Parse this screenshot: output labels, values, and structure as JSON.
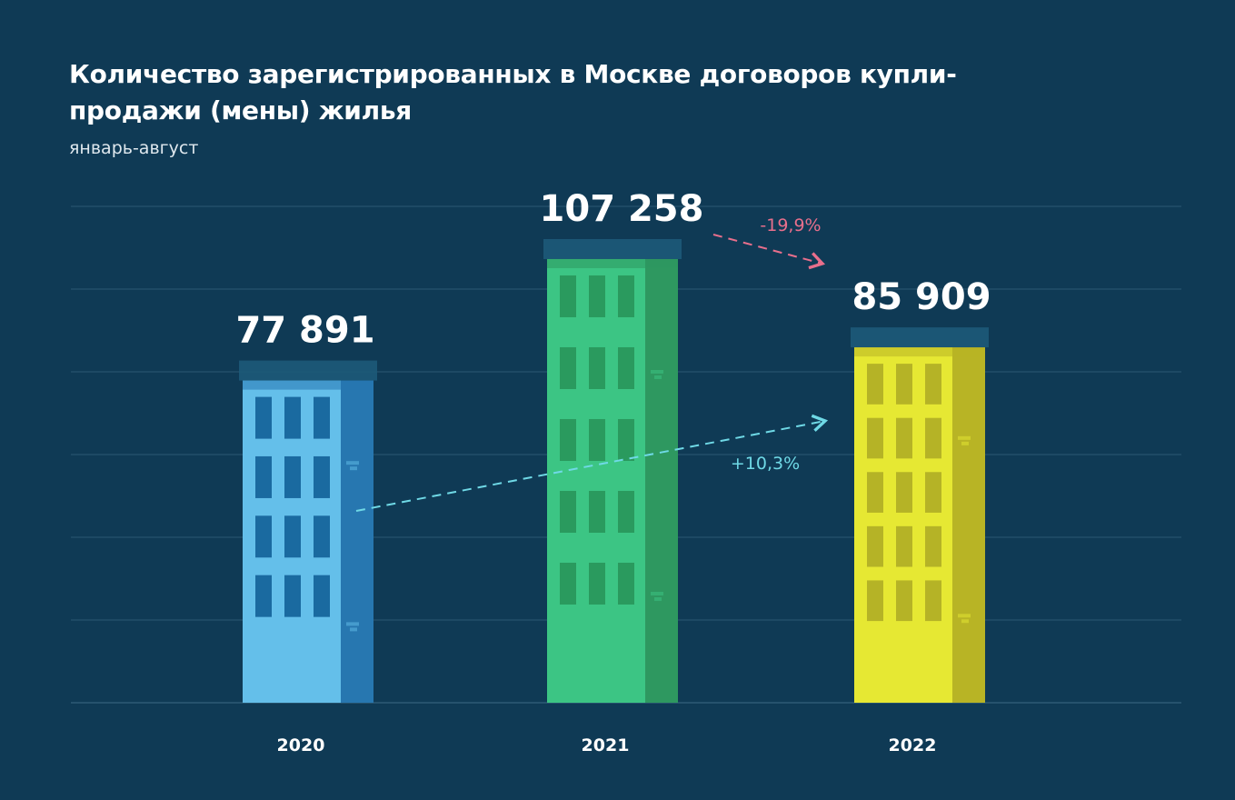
{
  "chart_data": {
    "type": "bar",
    "title": "Количество зарегистрированных в Москве договоров купли-продажи (мены) жилья",
    "subtitle": "январь-август",
    "categories": [
      "2020",
      "2021",
      "2022"
    ],
    "values": [
      77891,
      107258,
      85909
    ],
    "value_labels": [
      "77 891",
      "107 258",
      "85 909"
    ],
    "ylim": [
      0,
      120000
    ],
    "grid": true,
    "annotations": [
      {
        "text": "-19,9%",
        "from": "2021",
        "to": "2022",
        "color": "#e86f8c"
      },
      {
        "text": "+10,3%",
        "from": "2020",
        "to": "2022",
        "color": "#6fd9e6"
      }
    ],
    "colors": [
      {
        "front": "#64bfea",
        "side": "#2777b0",
        "roof": "#1d5a79",
        "window": "#1a6aa0"
      },
      {
        "front": "#3cc584",
        "side": "#2e9860",
        "roof": "#1d5a79",
        "window": "#2a9a5e"
      },
      {
        "front": "#e6e833",
        "side": "#b8b425",
        "roof": "#1d5a79",
        "window": "#b5b326"
      }
    ]
  }
}
